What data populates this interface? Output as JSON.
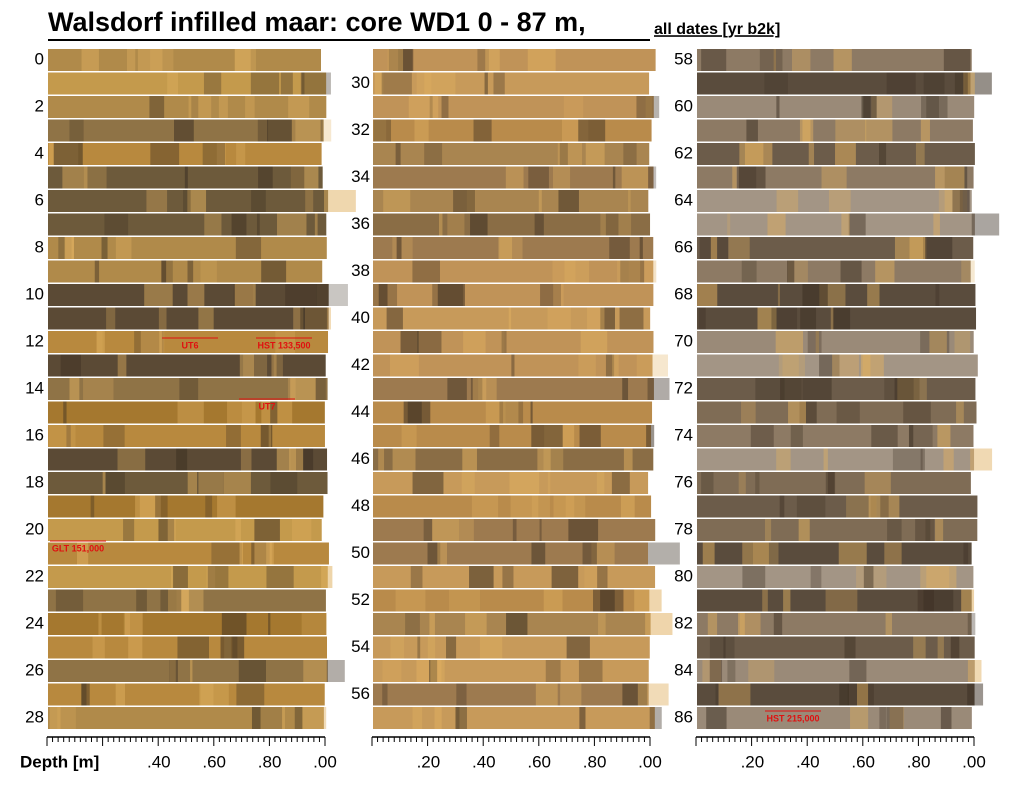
{
  "title": {
    "main": "Walsdorf infilled maar: core WD1   0 - 87 m,",
    "sub": "all dates [yr b2k]"
  },
  "axis_title": "Depth [m]",
  "columns": [
    {
      "depth_labels": [
        "0",
        "2",
        "4",
        "6",
        "8",
        "10",
        "12",
        "14",
        "16",
        "18",
        "20",
        "22",
        "24",
        "26",
        "28"
      ],
      "scale_labels": [
        ".40",
        ".60",
        ".80",
        ".00"
      ],
      "annotations": [
        "UT6",
        "HST 133,500",
        "UT7",
        "GLT 151,000"
      ]
    },
    {
      "depth_labels": [
        "30",
        "32",
        "34",
        "36",
        "38",
        "40",
        "42",
        "44",
        "46",
        "48",
        "50",
        "52",
        "54",
        "56"
      ],
      "scale_labels": [
        ".20",
        ".40",
        ".60",
        ".80",
        ".00"
      ],
      "annotations": []
    },
    {
      "depth_labels": [
        "58",
        "60",
        "62",
        "64",
        "66",
        "68",
        "70",
        "72",
        "74",
        "76",
        "78",
        "80",
        "82",
        "84",
        "86"
      ],
      "scale_labels": [
        ".20",
        ".40",
        ".60",
        ".80",
        ".00"
      ],
      "annotations": [
        "HST 215,000"
      ]
    }
  ]
}
